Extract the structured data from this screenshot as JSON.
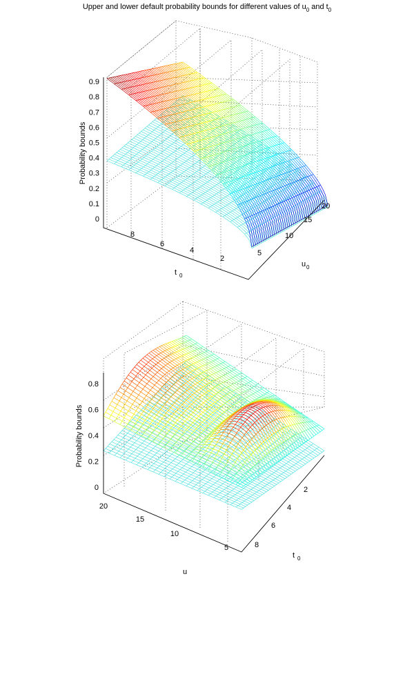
{
  "title": {
    "text": "Upper and lower default probability bounds for different values of u",
    "sub_u": "0",
    "and": " and t",
    "sub_t": "0"
  },
  "colors": {
    "lower_surface": "#3fdede",
    "colormap": "jet",
    "grid": "#4a4a4a"
  },
  "chart_data": [
    {
      "type": "surface",
      "title": "",
      "zlabel": "Probability bounds",
      "xlabel": "t",
      "xlabel_sub": "0",
      "ylabel": "u",
      "ylabel_sub": "0",
      "xlim": [
        0,
        10
      ],
      "ylim": [
        3,
        22
      ],
      "zlim": [
        0,
        0.95
      ],
      "x_ticks": [
        "2",
        "4",
        "6",
        "8"
      ],
      "y_ticks": [
        "5",
        "10",
        "15",
        "20"
      ],
      "z_ticks": [
        "0",
        "0.1",
        "0.2",
        "0.3",
        "0.4",
        "0.5",
        "0.6",
        "0.7",
        "0.8",
        "0.9"
      ],
      "grid": true,
      "series": [
        {
          "name": "",
          "kind": "upper",
          "corners": {
            "t_max_u_min": 0.92,
            "t_max_u_max": 0.62,
            "t_min_u_min": 0.02,
            "t_min_u_max": 0.14
          }
        },
        {
          "name": "",
          "kind": "lower",
          "corners": {
            "t_max_u_min": 0.36,
            "t_max_u_max": 0.38,
            "t_min_u_min": 0.01,
            "t_min_u_max": 0.06
          }
        }
      ]
    },
    {
      "type": "surface",
      "title": "",
      "zlabel": "Probability bounds",
      "xlabel": "u",
      "xlabel_sub": "",
      "ylabel": "t",
      "ylabel_sub": "0",
      "xlim": [
        2,
        21
      ],
      "ylim": [
        0,
        9
      ],
      "zlim": [
        0,
        0.85
      ],
      "x_ticks": [
        "5",
        "10",
        "15",
        "20"
      ],
      "y_ticks": [
        "2",
        "4",
        "6",
        "8"
      ],
      "z_ticks": [
        "0",
        "0.2",
        "0.4",
        "0.6",
        "0.8"
      ],
      "grid": true,
      "series": [
        {
          "name": "",
          "kind": "upper",
          "range": [
            0.45,
            0.8
          ]
        },
        {
          "name": "",
          "kind": "lower",
          "value": 0.33
        }
      ]
    }
  ]
}
